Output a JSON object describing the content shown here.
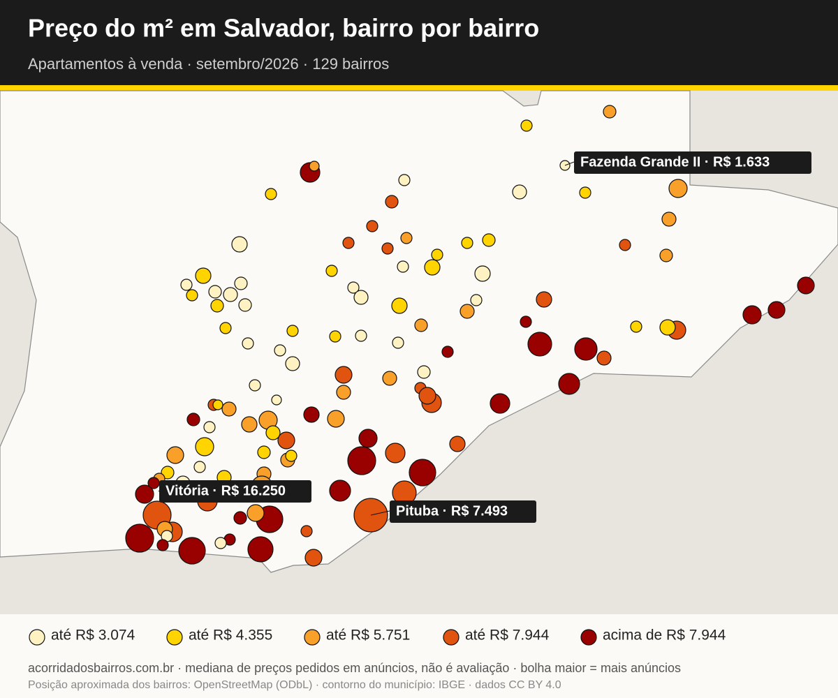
{
  "header": {
    "title": "Preço do m² em Salvador, bairro por bairro",
    "subtitle": "Apartamentos à venda · setembro/2026 · 129 bairros"
  },
  "annotations": [
    {
      "text": "Fazenda Grande II · R$ 1.633"
    },
    {
      "text": "Vitória · R$ 16.250"
    },
    {
      "text": "Pituba · R$ 7.493"
    }
  ],
  "legend": [
    {
      "label": "até R$ 3.074",
      "color": "#fff2c2"
    },
    {
      "label": "até R$ 4.355",
      "color": "#ffd400"
    },
    {
      "label": "até R$ 5.751",
      "color": "#f9a02a"
    },
    {
      "label": "até R$ 7.944",
      "color": "#e0540f"
    },
    {
      "label": "acima de R$ 7.944",
      "color": "#990000"
    }
  ],
  "footer": {
    "source": "acorridadosbairros.com.br · mediana de preços pedidos em anúncios, não é avaliação · bolha maior = mais anúncios",
    "attribution": "Posição aproximada dos bairros: OpenStreetMap (ODbL) · contorno do município: IBGE · dados CC BY 4.0"
  }
}
